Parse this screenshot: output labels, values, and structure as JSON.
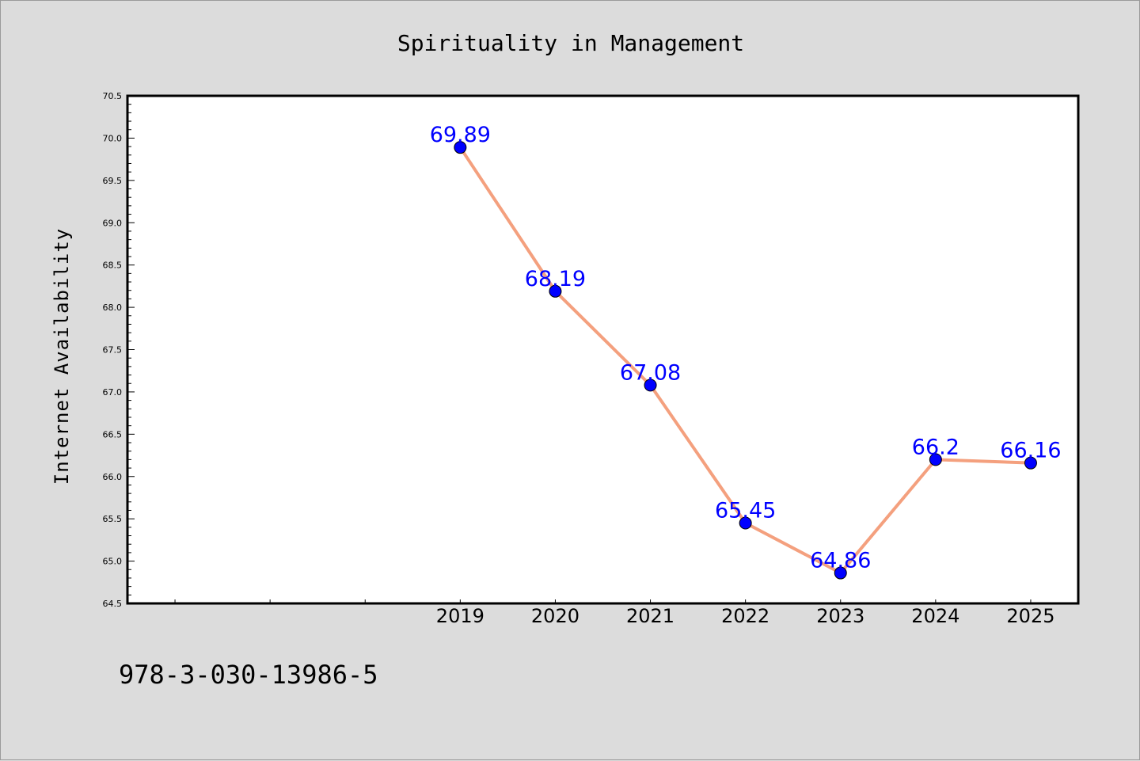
{
  "chart_data": {
    "type": "line",
    "title": "Spirituality in Management",
    "ylabel": "Internet Availability",
    "xlabel": "",
    "x_ticks_labeled": [
      "2019",
      "2020",
      "2021",
      "2022",
      "2023",
      "2024",
      "2025"
    ],
    "y_ticks": [
      "64.5",
      "65.0",
      "65.5",
      "66.0",
      "66.5",
      "67.0",
      "67.5",
      "68.0",
      "68.5",
      "69.0",
      "69.5",
      "70.0",
      "70.5"
    ],
    "ylim": [
      64.5,
      70.5
    ],
    "xlim": [
      2015.5,
      2025.5
    ],
    "grid": false,
    "series": [
      {
        "x": [
          2019,
          2020,
          2021,
          2022,
          2023,
          2024,
          2025
        ],
        "values": [
          69.89,
          68.19,
          67.08,
          65.45,
          64.86,
          66.2,
          66.16
        ],
        "labels": [
          "69.89",
          "68.19",
          "67.08",
          "65.45",
          "64.86",
          "66.2",
          "66.16"
        ],
        "line_color": "#f4a07e",
        "marker_color": "#0000ff",
        "label_color": "#0000ff"
      }
    ]
  },
  "footer_text": "978-3-030-13986-5"
}
